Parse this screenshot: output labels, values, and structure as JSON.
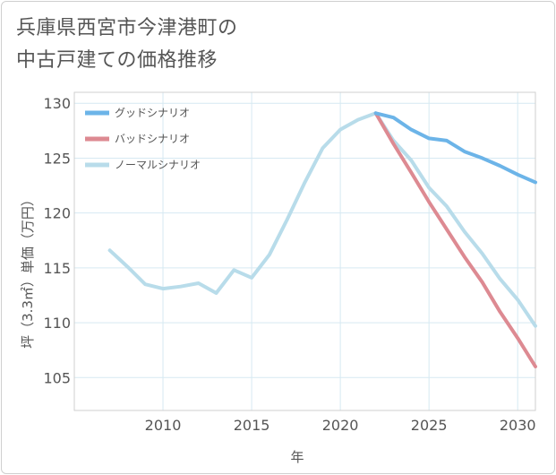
{
  "title": {
    "line1": "兵庫県西宮市今津港町の",
    "line2": "中古戸建ての価格推移"
  },
  "chart_data": {
    "type": "line",
    "title": "兵庫県西宮市今津港町の中古戸建ての価格推移",
    "xlabel": "年",
    "ylabel": "坪（3.3㎡）単価（万円）",
    "xlim": [
      2005,
      2031
    ],
    "ylim": [
      102,
      131
    ],
    "xticks": [
      2010,
      2015,
      2020,
      2025,
      2030
    ],
    "yticks": [
      105,
      110,
      115,
      120,
      125,
      130
    ],
    "grid": true,
    "legend_position": "top-left",
    "series": [
      {
        "name": "グッドシナリオ",
        "color": "#6cb4e8",
        "x": [
          2022,
          2023,
          2024,
          2025,
          2026,
          2027,
          2028,
          2029,
          2030,
          2031
        ],
        "values": [
          129.1,
          128.7,
          127.6,
          126.8,
          126.6,
          125.6,
          125.0,
          124.3,
          123.5,
          122.8
        ]
      },
      {
        "name": "バッドシナリオ",
        "color": "#dd8a92",
        "x": [
          2022,
          2023,
          2024,
          2025,
          2026,
          2027,
          2028,
          2029,
          2030,
          2031
        ],
        "values": [
          129.1,
          126.3,
          123.7,
          121.0,
          118.5,
          116.0,
          113.7,
          111.0,
          108.6,
          106.0
        ]
      },
      {
        "name": "ノーマルシナリオ",
        "color": "#b8dcea",
        "x": [
          2007,
          2008,
          2009,
          2010,
          2011,
          2012,
          2013,
          2014,
          2015,
          2016,
          2017,
          2018,
          2019,
          2020,
          2021,
          2022,
          2023,
          2024,
          2025,
          2026,
          2027,
          2028,
          2029,
          2030,
          2031
        ],
        "values": [
          116.6,
          115.1,
          113.5,
          113.1,
          113.3,
          113.6,
          112.7,
          114.8,
          114.1,
          116.2,
          119.4,
          122.8,
          125.9,
          127.6,
          128.5,
          129.1,
          126.6,
          124.8,
          122.3,
          120.6,
          118.3,
          116.3,
          114.0,
          112.1,
          109.7
        ]
      }
    ]
  }
}
